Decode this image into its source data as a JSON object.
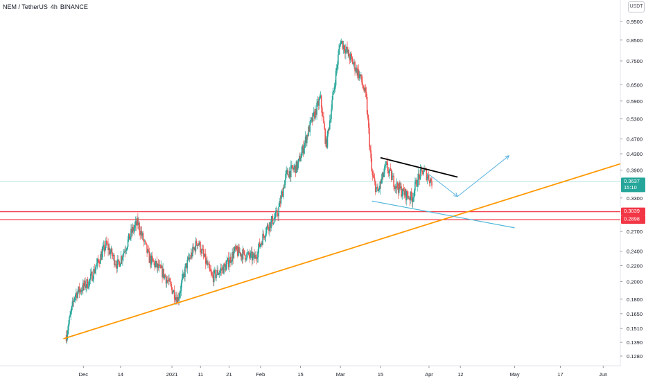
{
  "header": {
    "symbol": "NEM / TetherUS",
    "interval": "4h",
    "exchange": "BINANCE"
  },
  "currency_button": "USDT",
  "colors": {
    "up": "#26a69a",
    "down": "#ef5350",
    "trendline": "#ff9800",
    "resistance": "#f23645",
    "pattern_top": "#000000",
    "pattern_bottom": "#4fb6d9",
    "arrow": "#5cb3e0",
    "price_label": "#26a69a",
    "level_label": "#f23645"
  },
  "price_tag": {
    "price": "0.3637",
    "countdown": "15:10",
    "value": 0.3637
  },
  "levels": [
    {
      "label": "0.3039",
      "value": 0.3039
    },
    {
      "label": "0.2898",
      "value": 0.2898
    }
  ],
  "chart_data": {
    "type": "candlestick",
    "title": "NEM / TetherUS, 4h, BINANCE",
    "y_scale": "log",
    "y_ticks": [
      "0.9500",
      "0.8500",
      "0.7500",
      "0.6500",
      "0.5900",
      "0.5300",
      "0.4700",
      "0.4300",
      "0.3900",
      "0.3300",
      "0.2700",
      "0.2400",
      "0.2200",
      "0.2000",
      "0.1800",
      "0.1650",
      "0.1510",
      "0.1390",
      "0.1280"
    ],
    "x_ticks": [
      "Dec",
      "14",
      "2021",
      "11",
      "21",
      "Feb",
      "15",
      "Mar",
      "15",
      "Apr",
      "12",
      "May",
      "17",
      "Jun"
    ],
    "x_range": [
      "2020-11-20",
      "2021-06-07"
    ],
    "approx_close_path": [
      {
        "date": "2020-11-25",
        "close": 0.145
      },
      {
        "date": "2020-11-28",
        "close": 0.185
      },
      {
        "date": "2020-12-03",
        "close": 0.2
      },
      {
        "date": "2020-12-09",
        "close": 0.25
      },
      {
        "date": "2020-12-13",
        "close": 0.22
      },
      {
        "date": "2020-12-18",
        "close": 0.27
      },
      {
        "date": "2020-12-20",
        "close": 0.285
      },
      {
        "date": "2020-12-24",
        "close": 0.23
      },
      {
        "date": "2020-12-29",
        "close": 0.21
      },
      {
        "date": "2021-01-03",
        "close": 0.18
      },
      {
        "date": "2021-01-06",
        "close": 0.22
      },
      {
        "date": "2021-01-10",
        "close": 0.255
      },
      {
        "date": "2021-01-15",
        "close": 0.205
      },
      {
        "date": "2021-01-20",
        "close": 0.22
      },
      {
        "date": "2021-01-23",
        "close": 0.24
      },
      {
        "date": "2021-01-30",
        "close": 0.23
      },
      {
        "date": "2021-02-03",
        "close": 0.275
      },
      {
        "date": "2021-02-07",
        "close": 0.3
      },
      {
        "date": "2021-02-10",
        "close": 0.38
      },
      {
        "date": "2021-02-14",
        "close": 0.4
      },
      {
        "date": "2021-02-18",
        "close": 0.5
      },
      {
        "date": "2021-02-22",
        "close": 0.6
      },
      {
        "date": "2021-02-24",
        "close": 0.45
      },
      {
        "date": "2021-03-01",
        "close": 0.85
      },
      {
        "date": "2021-03-05",
        "close": 0.75
      },
      {
        "date": "2021-03-08",
        "close": 0.68
      },
      {
        "date": "2021-03-10",
        "close": 0.6
      },
      {
        "date": "2021-03-12",
        "close": 0.38
      },
      {
        "date": "2021-03-14",
        "close": 0.34
      },
      {
        "date": "2021-03-17",
        "close": 0.4
      },
      {
        "date": "2021-03-20",
        "close": 0.36
      },
      {
        "date": "2021-03-23",
        "close": 0.34
      },
      {
        "date": "2021-03-26",
        "close": 0.33
      },
      {
        "date": "2021-03-28",
        "close": 0.37
      },
      {
        "date": "2021-03-30",
        "close": 0.39
      },
      {
        "date": "2021-04-02",
        "close": 0.3637
      }
    ],
    "drawings": [
      {
        "name": "ascending-trendline",
        "from": {
          "date": "2020-11-24",
          "price": 0.142
        },
        "to": {
          "date": "2021-06-07",
          "price": 0.405
        }
      },
      {
        "name": "triangle-top",
        "from": {
          "date": "2021-03-15",
          "price": 0.42
        },
        "to": {
          "date": "2021-04-11",
          "price": 0.374
        }
      },
      {
        "name": "triangle-bottom",
        "from": {
          "date": "2021-03-12",
          "price": 0.324
        },
        "to": {
          "date": "2021-05-01",
          "price": 0.276
        }
      },
      {
        "name": "projection-arrow-down",
        "from": {
          "date": "2021-04-01",
          "price": 0.38
        },
        "to": {
          "date": "2021-04-11",
          "price": 0.333
        }
      },
      {
        "name": "projection-arrow-up",
        "from": {
          "date": "2021-04-11",
          "price": 0.333
        },
        "to": {
          "date": "2021-04-29",
          "price": 0.425
        }
      }
    ]
  }
}
